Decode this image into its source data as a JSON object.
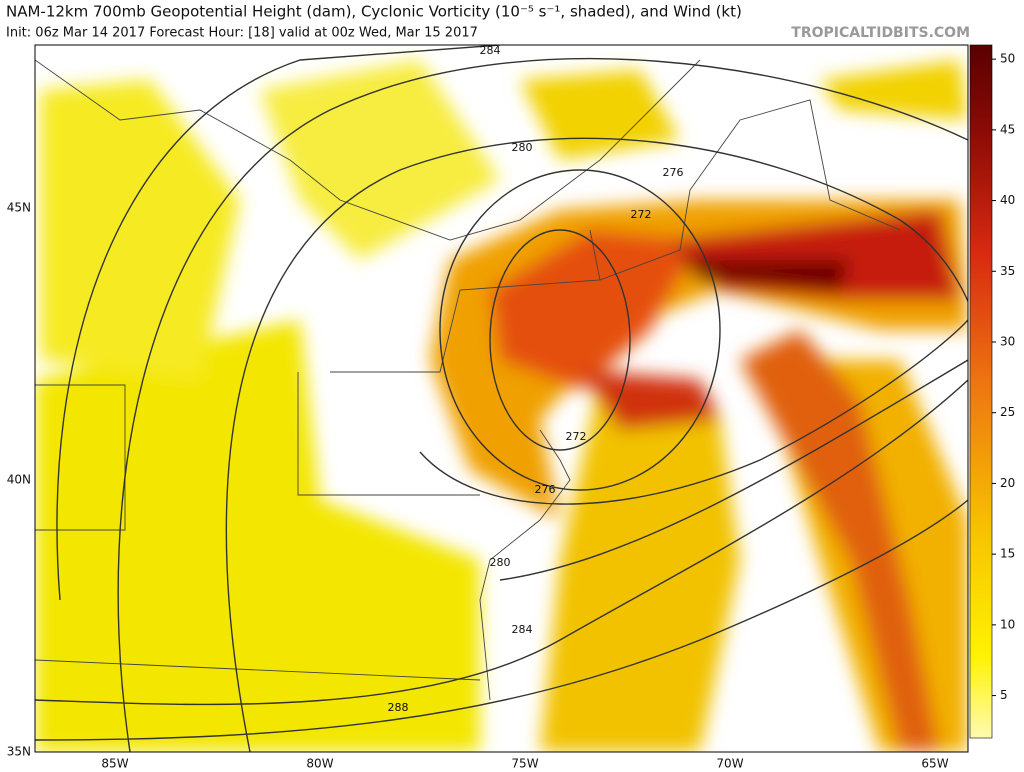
{
  "header": {
    "title": "NAM-12km 700mb Geopotential Height (dam), Cyclonic Vorticity (10⁻⁵ s⁻¹, shaded), and Wind (kt)",
    "subtitle": "Init: 06z Mar 14 2017   Forecast Hour: [18]   valid at 00z Wed, Mar 15 2017",
    "source": "TROPICALTIDBITS.COM"
  },
  "map": {
    "lat_labels": [
      "45N",
      "40N",
      "35N"
    ],
    "lon_labels": [
      "85W",
      "80W",
      "75W",
      "70W",
      "65W"
    ],
    "contour_labels": [
      "284",
      "280",
      "276",
      "272",
      "272",
      "276",
      "280",
      "284",
      "288"
    ]
  },
  "colorbar": {
    "range": [
      2,
      51
    ],
    "ticks": [
      5,
      10,
      15,
      20,
      25,
      30,
      35,
      40,
      45,
      50
    ]
  }
}
